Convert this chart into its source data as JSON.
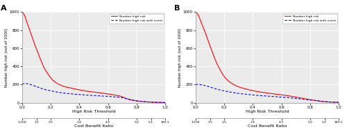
{
  "title_A": "A",
  "title_B": "B",
  "ylabel": "Number high risk (out of 1000)",
  "xlabel_top": "High Risk Threshold",
  "xlabel_bottom": "Cost Benefit Ratio",
  "xlim": [
    0.0,
    1.0
  ],
  "ylim": [
    0,
    1000
  ],
  "yticks": [
    0,
    200,
    400,
    600,
    800,
    1000
  ],
  "xticks_top": [
    0.0,
    0.2,
    0.4,
    0.6,
    0.8,
    1.0
  ],
  "xtick_labels_bottom": [
    "1:100",
    "1.5",
    "2.5",
    "3.4",
    "4.3",
    "5.2",
    "5:1",
    "100:1"
  ],
  "xtick_pos_bottom": [
    0.0,
    0.1,
    0.2,
    0.4,
    0.6,
    0.8,
    0.9,
    1.0
  ],
  "legend_labels": [
    "Number high risk",
    "Number high risk with event"
  ],
  "line_colors": [
    "red",
    "blue"
  ],
  "line_styles": [
    "-",
    "--"
  ],
  "background_color": "#ebebeb",
  "grid_color": "white",
  "panel_A_red_x": [
    0.0,
    0.01,
    0.02,
    0.03,
    0.05,
    0.07,
    0.09,
    0.11,
    0.13,
    0.15,
    0.17,
    0.19,
    0.21,
    0.23,
    0.25,
    0.27,
    0.29,
    0.31,
    0.33,
    0.35,
    0.38,
    0.4,
    0.43,
    0.45,
    0.48,
    0.5,
    0.53,
    0.55,
    0.58,
    0.6,
    0.63,
    0.65,
    0.68,
    0.7,
    0.72,
    0.73,
    0.75,
    0.77,
    0.8,
    0.83,
    0.85,
    0.88,
    0.9,
    0.93,
    0.95,
    1.0
  ],
  "panel_A_red_y": [
    1000,
    980,
    950,
    900,
    810,
    720,
    630,
    550,
    470,
    395,
    340,
    295,
    255,
    228,
    207,
    193,
    181,
    172,
    165,
    158,
    148,
    142,
    134,
    128,
    122,
    118,
    112,
    108,
    102,
    97,
    90,
    84,
    75,
    65,
    52,
    45,
    35,
    28,
    20,
    15,
    12,
    9,
    7,
    5,
    4,
    2
  ],
  "panel_A_blue_x": [
    0.0,
    0.01,
    0.02,
    0.03,
    0.05,
    0.07,
    0.09,
    0.11,
    0.13,
    0.15,
    0.17,
    0.19,
    0.21,
    0.23,
    0.25,
    0.27,
    0.29,
    0.31,
    0.33,
    0.35,
    0.38,
    0.4,
    0.43,
    0.45,
    0.48,
    0.5,
    0.53,
    0.55,
    0.58,
    0.6,
    0.63,
    0.65,
    0.68,
    0.7,
    0.72,
    0.73,
    0.75,
    0.77,
    0.8,
    0.83,
    0.85,
    0.88,
    0.9,
    0.93,
    0.95,
    1.0
  ],
  "panel_A_blue_y": [
    205,
    210,
    212,
    210,
    205,
    195,
    184,
    172,
    160,
    150,
    142,
    135,
    128,
    122,
    116,
    111,
    107,
    103,
    100,
    97,
    93,
    90,
    87,
    84,
    82,
    80,
    77,
    75,
    72,
    70,
    67,
    64,
    60,
    55,
    48,
    44,
    37,
    30,
    21,
    16,
    13,
    9,
    7,
    5,
    4,
    2
  ],
  "panel_B_red_x": [
    0.0,
    0.01,
    0.02,
    0.03,
    0.05,
    0.07,
    0.09,
    0.11,
    0.13,
    0.15,
    0.17,
    0.19,
    0.21,
    0.23,
    0.25,
    0.27,
    0.29,
    0.31,
    0.33,
    0.35,
    0.38,
    0.4,
    0.43,
    0.45,
    0.48,
    0.5,
    0.53,
    0.55,
    0.58,
    0.6,
    0.63,
    0.65,
    0.68,
    0.7,
    0.73,
    0.75,
    0.78,
    0.8,
    0.83,
    0.85,
    0.88,
    0.9,
    0.93,
    0.95,
    1.0
  ],
  "panel_B_red_y": [
    1000,
    985,
    960,
    920,
    840,
    760,
    670,
    585,
    500,
    425,
    365,
    310,
    268,
    238,
    215,
    197,
    182,
    170,
    160,
    152,
    140,
    133,
    124,
    118,
    112,
    107,
    101,
    97,
    91,
    87,
    81,
    76,
    68,
    62,
    54,
    47,
    40,
    34,
    27,
    22,
    16,
    12,
    9,
    7,
    5
  ],
  "panel_B_blue_x": [
    0.0,
    0.01,
    0.02,
    0.03,
    0.05,
    0.07,
    0.09,
    0.11,
    0.13,
    0.15,
    0.17,
    0.19,
    0.21,
    0.23,
    0.25,
    0.27,
    0.29,
    0.31,
    0.33,
    0.35,
    0.38,
    0.4,
    0.43,
    0.45,
    0.48,
    0.5,
    0.53,
    0.55,
    0.58,
    0.6,
    0.63,
    0.65,
    0.68,
    0.7,
    0.73,
    0.75,
    0.78,
    0.8,
    0.83,
    0.85,
    0.88,
    0.9,
    0.93,
    0.95,
    1.0
  ],
  "panel_B_blue_y": [
    200,
    202,
    202,
    200,
    195,
    188,
    178,
    168,
    158,
    149,
    141,
    133,
    127,
    121,
    115,
    110,
    105,
    101,
    97,
    94,
    89,
    86,
    82,
    79,
    76,
    73,
    70,
    68,
    64,
    62,
    58,
    55,
    51,
    47,
    43,
    39,
    34,
    30,
    25,
    21,
    16,
    12,
    9,
    7,
    5
  ]
}
